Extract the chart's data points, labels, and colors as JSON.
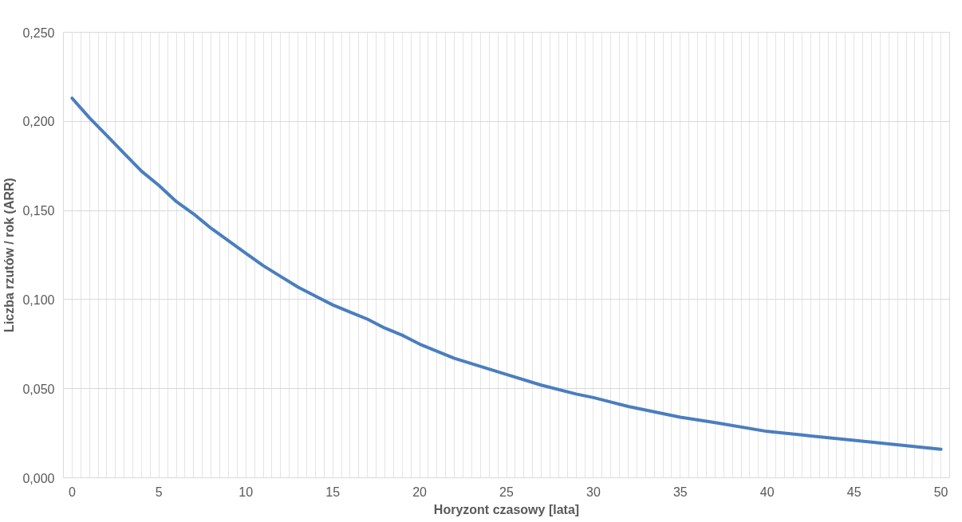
{
  "chart_data": {
    "type": "line",
    "xlabel": "Horyzont czasowy [lata]",
    "ylabel": "Liczba rzutów / rok (ARR)",
    "x": [
      0,
      1,
      2,
      3,
      4,
      5,
      6,
      7,
      8,
      9,
      10,
      11,
      12,
      13,
      14,
      15,
      16,
      17,
      18,
      19,
      20,
      22,
      25,
      27,
      29,
      30,
      32,
      34,
      35,
      37,
      40,
      42,
      45,
      47,
      50
    ],
    "series": [
      {
        "color": "#4a7ebf",
        "values": [
          0.213,
          0.202,
          0.192,
          0.182,
          0.172,
          0.164,
          0.155,
          0.148,
          0.14,
          0.133,
          0.126,
          0.119,
          0.113,
          0.107,
          0.102,
          0.097,
          0.093,
          0.089,
          0.084,
          0.08,
          0.075,
          0.067,
          0.058,
          0.052,
          0.047,
          0.045,
          0.04,
          0.036,
          0.034,
          0.031,
          0.026,
          0.024,
          0.021,
          0.019,
          0.016
        ]
      }
    ],
    "xlim": [
      -0.5,
      50.5
    ],
    "xticks": [
      0,
      5,
      10,
      15,
      20,
      25,
      30,
      35,
      40,
      45,
      50
    ],
    "ylim": [
      0,
      0.25
    ],
    "yticks": [
      {
        "value": 0,
        "label": "0,000"
      },
      {
        "value": 0.05,
        "label": "0,050"
      },
      {
        "value": 0.1,
        "label": "0,100"
      },
      {
        "value": 0.15,
        "label": "0,150"
      },
      {
        "value": 0.2,
        "label": "0,200"
      },
      {
        "value": 0.25,
        "label": "0,250"
      }
    ],
    "grid": true,
    "marker": "none",
    "line_style": "solid"
  }
}
